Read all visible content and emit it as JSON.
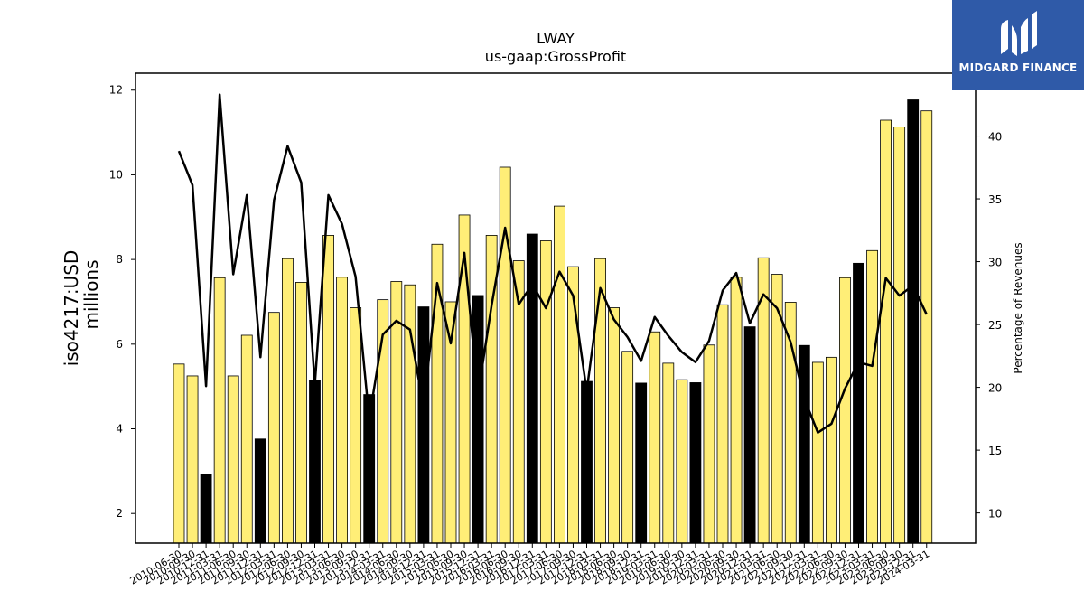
{
  "logo": {
    "text": "MIDGARD FINANCE",
    "bg_color": "#2f5aa8"
  },
  "colors": {
    "bar_yellow": "#ffee77",
    "bar_black": "#000000",
    "line": "#000000"
  },
  "chart_data": {
    "type": "bar",
    "title": "LWAY",
    "subtitle": "us-gaap:GrossProfit",
    "ylabel_left": [
      "iso4217:USD",
      "millions"
    ],
    "ylabel_right": "Percentage of Revenues",
    "ylim_left": [
      1.3,
      12.4
    ],
    "ylim_right": [
      7.6,
      45.0
    ],
    "yticks_left": [
      2,
      4,
      6,
      8,
      10,
      12
    ],
    "yticks_right": [
      10,
      15,
      20,
      25,
      30,
      35,
      40
    ],
    "grid": false,
    "legend": "none",
    "categories": [
      "2010-06-30",
      "2010-09-30",
      "2010-12-31",
      "2011-03-31",
      "2011-06-30",
      "2011-09-30",
      "2011-12-31",
      "2012-03-31",
      "2012-06-30",
      "2012-09-30",
      "2012-12-31",
      "2013-03-31",
      "2013-06-30",
      "2013-09-30",
      "2013-12-31",
      "2014-03-31",
      "2014-06-30",
      "2014-09-30",
      "2014-12-31",
      "2015-03-31",
      "2015-06-30",
      "2015-09-30",
      "2015-12-31",
      "2016-03-31",
      "2016-06-30",
      "2016-09-30",
      "2016-12-31",
      "2017-03-31",
      "2017-06-30",
      "2017-09-30",
      "2017-12-31",
      "2018-03-31",
      "2018-06-30",
      "2018-09-30",
      "2018-12-31",
      "2019-03-31",
      "2019-06-30",
      "2019-09-30",
      "2019-12-31",
      "2020-03-31",
      "2020-06-30",
      "2020-09-30",
      "2020-12-31",
      "2021-03-31",
      "2021-06-30",
      "2021-09-30",
      "2021-12-31",
      "2022-03-31",
      "2022-06-30",
      "2022-09-30",
      "2022-12-31",
      "2023-03-31",
      "2023-06-30",
      "2023-09-30",
      "2023-12-31",
      "2024-03-31"
    ],
    "bar_values": [
      5.53,
      5.25,
      2.93,
      7.57,
      5.25,
      6.21,
      3.76,
      6.75,
      8.02,
      7.46,
      5.14,
      8.57,
      7.58,
      6.86,
      4.81,
      7.05,
      7.48,
      7.4,
      6.88,
      8.36,
      7.0,
      9.05,
      7.15,
      8.57,
      10.18,
      7.97,
      8.6,
      8.44,
      9.26,
      7.83,
      5.12,
      8.02,
      6.86,
      5.83,
      5.08,
      6.29,
      5.55,
      5.16,
      5.09,
      5.98,
      6.93,
      7.58,
      6.41,
      8.04,
      7.65,
      6.99,
      5.97,
      5.57,
      5.69,
      7.57,
      7.91,
      8.21,
      11.29,
      11.13,
      11.77,
      11.51
    ],
    "bar_highlight": [
      false,
      false,
      true,
      false,
      false,
      false,
      true,
      false,
      false,
      false,
      true,
      false,
      false,
      false,
      true,
      false,
      false,
      false,
      true,
      false,
      false,
      false,
      true,
      false,
      false,
      false,
      true,
      false,
      false,
      false,
      true,
      false,
      false,
      false,
      true,
      false,
      false,
      false,
      true,
      false,
      false,
      false,
      true,
      false,
      false,
      false,
      true,
      false,
      false,
      false,
      true,
      false,
      false,
      false,
      true,
      false
    ],
    "line_values": [
      38.8,
      36.1,
      20.1,
      43.3,
      29.0,
      35.3,
      22.4,
      34.9,
      39.2,
      36.3,
      20.2,
      35.3,
      33.0,
      28.8,
      17.5,
      24.2,
      25.3,
      24.6,
      18.4,
      28.3,
      23.5,
      30.7,
      19.4,
      26.5,
      32.7,
      26.6,
      28.2,
      26.3,
      29.2,
      27.3,
      19.7,
      27.9,
      25.4,
      24.0,
      22.1,
      25.6,
      24.1,
      22.8,
      22.0,
      23.7,
      27.7,
      29.1,
      25.1,
      27.4,
      26.3,
      23.6,
      19.1,
      16.4,
      17.1,
      19.9,
      22.0,
      21.7,
      28.7,
      27.3,
      28.1,
      25.8
    ]
  }
}
